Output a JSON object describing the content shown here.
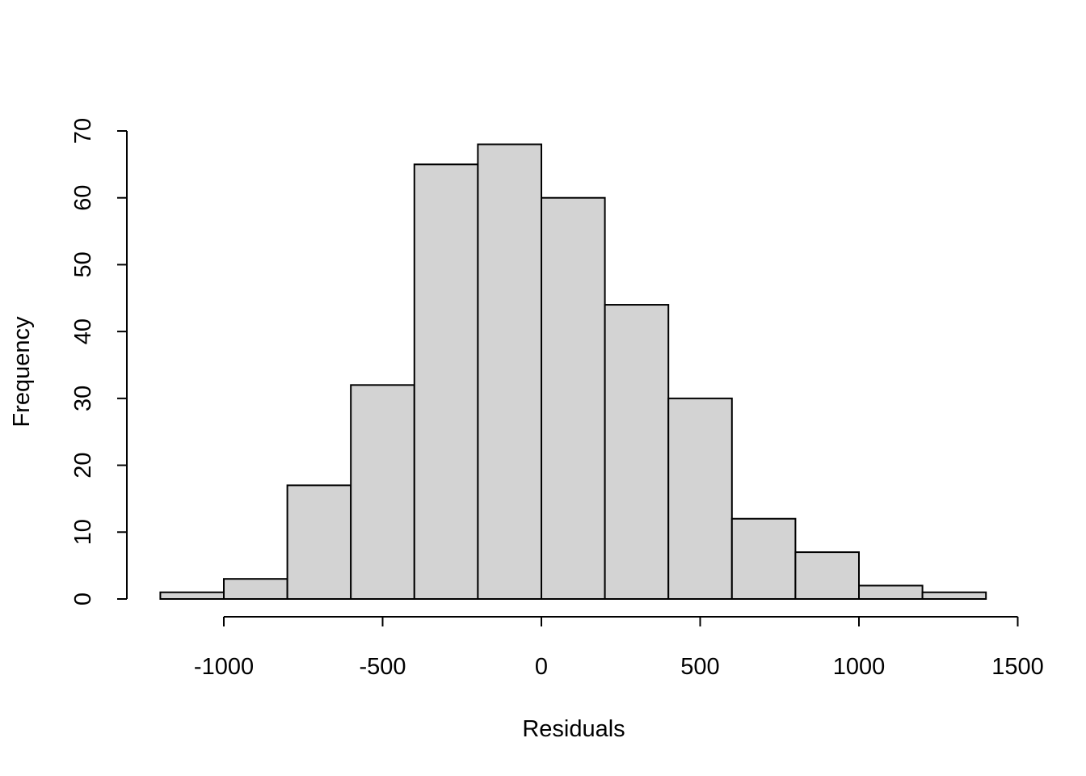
{
  "chart_data": {
    "type": "bar",
    "subtype": "histogram",
    "title": "",
    "xlabel": "Residuals",
    "ylabel": "Frequency",
    "bin_edges": [
      -1200,
      -1000,
      -800,
      -600,
      -400,
      -200,
      0,
      200,
      400,
      600,
      800,
      1000,
      1200,
      1400
    ],
    "values": [
      1,
      3,
      17,
      32,
      65,
      68,
      60,
      44,
      30,
      12,
      7,
      2,
      1
    ],
    "xlim": [
      -1000,
      1500
    ],
    "ylim": [
      0,
      70
    ],
    "x_ticks": [
      -1000,
      -500,
      0,
      500,
      1000,
      1500
    ],
    "y_ticks": [
      0,
      10,
      20,
      30,
      40,
      50,
      60,
      70
    ],
    "grid": false,
    "bar_color": "#d3d3d3",
    "edge_color": "#000000"
  }
}
